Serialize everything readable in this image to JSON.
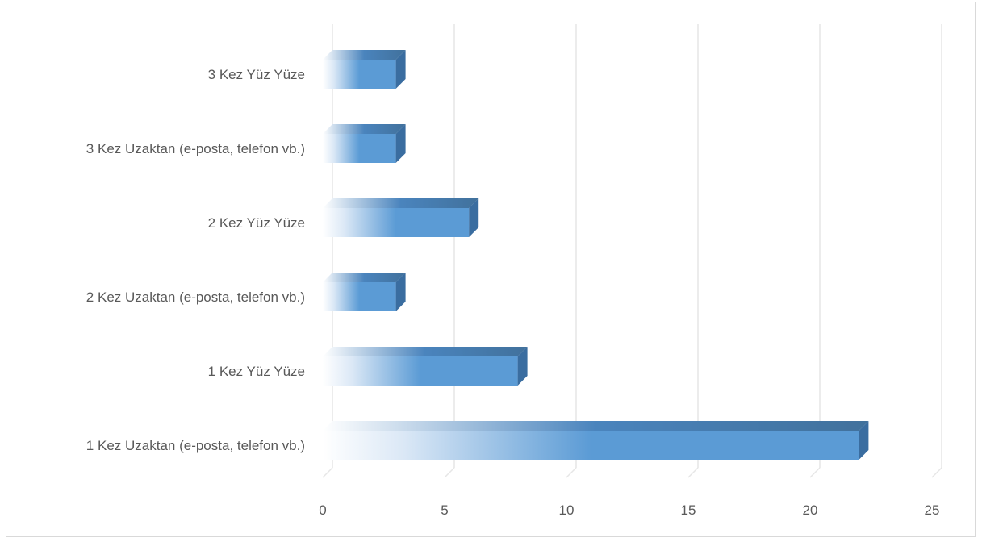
{
  "chart_data": {
    "type": "bar",
    "orientation": "horizontal",
    "style": "3d-gradient",
    "categories": [
      "1 Kez Uzaktan (e-posta, telefon vb.)",
      "1 Kez Yüz Yüze",
      "2 Kez Uzaktan (e-posta, telefon vb.)",
      "2 Kez Yüz Yüze",
      "3 Kez Uzaktan (e-posta, telefon vb.)",
      "3 Kez Yüz Yüze"
    ],
    "values": [
      22,
      8,
      3,
      6,
      3,
      3
    ],
    "xlim": [
      0,
      25
    ],
    "xticks": [
      "0",
      "5",
      "10",
      "15",
      "20",
      "25"
    ],
    "title": "",
    "xlabel": "",
    "ylabel": "",
    "grid": true,
    "legend": "none",
    "colors": {
      "bar_front": "#5b9bd5",
      "bar_top": "#4a84bd",
      "bar_side": "#3a6da0",
      "grid": "#e6e6e6",
      "text": "#595959",
      "border": "#d9d9d9"
    }
  }
}
